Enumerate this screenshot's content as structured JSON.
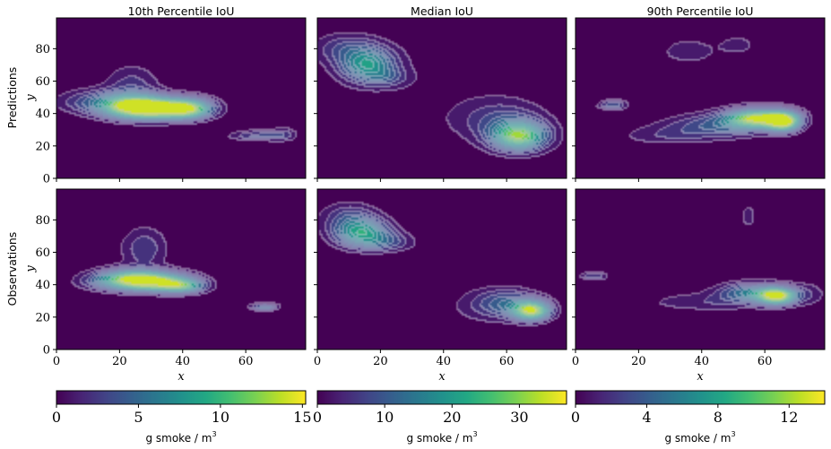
{
  "chart_data": {
    "type": "heatmap",
    "layout": "2 rows x 3 columns of filled contour maps",
    "column_titles": [
      "10th Percentile IoU",
      "Median IoU",
      "90th Percentile IoU"
    ],
    "row_labels": [
      "Predictions",
      "Observations"
    ],
    "xlabel": "x",
    "ylabel": "y",
    "xlim": [
      0,
      79
    ],
    "ylim": [
      0,
      99
    ],
    "x_ticks": [
      0,
      20,
      40,
      60
    ],
    "y_ticks": [
      0,
      20,
      40,
      60,
      80
    ],
    "colormap": "viridis",
    "contour_line_color": "#c8c8dc",
    "background_color": "#440154",
    "grid": false,
    "colorbars": [
      {
        "label": "g smoke / m",
        "unit_superscript": "3",
        "range": [
          0,
          15.2
        ],
        "ticks": [
          0,
          5,
          10,
          15
        ]
      },
      {
        "label": "g smoke / m",
        "unit_superscript": "3",
        "range": [
          0,
          37
        ],
        "ticks": [
          0,
          10,
          20,
          30
        ]
      },
      {
        "label": "g smoke / m",
        "unit_superscript": "3",
        "range": [
          0,
          14
        ],
        "ticks": [
          0,
          4,
          8,
          12
        ]
      }
    ],
    "panels": [
      {
        "row": 0,
        "col": 0,
        "plumes": [
          {
            "x": 32,
            "y": 43,
            "sx": 9,
            "sy": 4.5,
            "peak": 14.5
          },
          {
            "x": 24,
            "y": 45,
            "sx": 7,
            "sy": 5,
            "peak": 9
          },
          {
            "x": 42,
            "y": 43,
            "sx": 5,
            "sy": 4,
            "peak": 9
          },
          {
            "x": 12,
            "y": 47,
            "sx": 8,
            "sy": 5,
            "peak": 3.5
          },
          {
            "x": 24,
            "y": 58,
            "sx": 6,
            "sy": 8,
            "peak": 2.5
          },
          {
            "x": 64,
            "y": 26,
            "sx": 6,
            "sy": 2.2,
            "peak": 3.5
          },
          {
            "x": 72,
            "y": 27,
            "sx": 3,
            "sy": 3,
            "peak": 2
          }
        ]
      },
      {
        "row": 0,
        "col": 1,
        "plumes": [
          {
            "x": 16,
            "y": 70,
            "sx": 6,
            "sy": 7,
            "peak": 20
          },
          {
            "x": 9,
            "y": 80,
            "sx": 7,
            "sy": 6,
            "peak": 7
          },
          {
            "x": 22,
            "y": 62,
            "sx": 5,
            "sy": 4,
            "peak": 6
          },
          {
            "x": 64,
            "y": 26,
            "sx": 6,
            "sy": 6,
            "peak": 30
          },
          {
            "x": 58,
            "y": 36,
            "sx": 9,
            "sy": 8,
            "peak": 7
          },
          {
            "x": 40,
            "y": 50,
            "sx": 28,
            "sy": 32,
            "peak": 1.5
          }
        ]
      },
      {
        "row": 0,
        "col": 2,
        "plumes": [
          {
            "x": 58,
            "y": 37,
            "sx": 7,
            "sy": 4,
            "peak": 13
          },
          {
            "x": 66,
            "y": 35,
            "sx": 3.5,
            "sy": 4,
            "peak": 12
          },
          {
            "x": 45,
            "y": 32,
            "sx": 11,
            "sy": 5,
            "peak": 4
          },
          {
            "x": 28,
            "y": 26,
            "sx": 10,
            "sy": 4,
            "peak": 1.6
          },
          {
            "x": 12,
            "y": 45,
            "sx": 3,
            "sy": 2,
            "peak": 4
          },
          {
            "x": 36,
            "y": 78,
            "sx": 8,
            "sy": 7,
            "peak": 1.4
          },
          {
            "x": 52,
            "y": 82,
            "sx": 4,
            "sy": 4,
            "peak": 1.4
          }
        ]
      },
      {
        "row": 1,
        "col": 0,
        "plumes": [
          {
            "x": 30,
            "y": 42,
            "sx": 8,
            "sy": 4,
            "peak": 15
          },
          {
            "x": 40,
            "y": 39,
            "sx": 5,
            "sy": 3,
            "peak": 8
          },
          {
            "x": 22,
            "y": 44,
            "sx": 6,
            "sy": 4,
            "peak": 6
          },
          {
            "x": 28,
            "y": 62,
            "sx": 5,
            "sy": 9,
            "peak": 3
          },
          {
            "x": 14,
            "y": 42,
            "sx": 6,
            "sy": 4,
            "peak": 2.5
          },
          {
            "x": 66,
            "y": 26,
            "sx": 3,
            "sy": 1.6,
            "peak": 5
          }
        ]
      },
      {
        "row": 1,
        "col": 1,
        "plumes": [
          {
            "x": 14,
            "y": 72,
            "sx": 6,
            "sy": 6,
            "peak": 22
          },
          {
            "x": 10,
            "y": 82,
            "sx": 6,
            "sy": 6,
            "peak": 7
          },
          {
            "x": 22,
            "y": 66,
            "sx": 6,
            "sy": 4,
            "peak": 8
          },
          {
            "x": 68,
            "y": 24,
            "sx": 4,
            "sy": 4,
            "peak": 33
          },
          {
            "x": 60,
            "y": 28,
            "sx": 7,
            "sy": 6,
            "peak": 12
          },
          {
            "x": 48,
            "y": 25,
            "sx": 10,
            "sy": 10,
            "peak": 1.8
          }
        ]
      },
      {
        "row": 1,
        "col": 2,
        "plumes": [
          {
            "x": 64,
            "y": 33,
            "sx": 4,
            "sy": 3.5,
            "peak": 13
          },
          {
            "x": 56,
            "y": 35,
            "sx": 7,
            "sy": 4,
            "peak": 6
          },
          {
            "x": 42,
            "y": 29,
            "sx": 14,
            "sy": 4,
            "peak": 1.8
          },
          {
            "x": 74,
            "y": 34,
            "sx": 4,
            "sy": 5,
            "peak": 1.6
          },
          {
            "x": 55,
            "y": 82,
            "sx": 2,
            "sy": 6,
            "peak": 1.4
          },
          {
            "x": 6,
            "y": 45,
            "sx": 3,
            "sy": 1.6,
            "peak": 3
          }
        ]
      }
    ]
  }
}
